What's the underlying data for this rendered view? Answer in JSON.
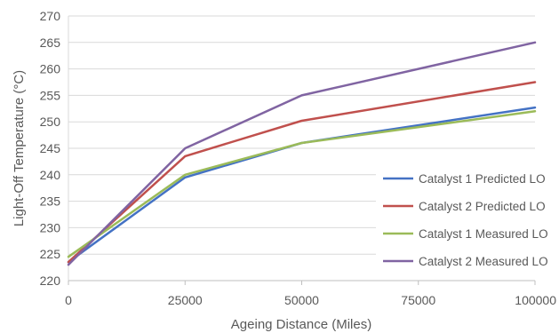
{
  "chart_data": {
    "type": "line",
    "title": "",
    "xlabel": "Ageing Distance (Miles)",
    "ylabel": "Light-Off Temperature (°C)",
    "x": [
      0,
      25000,
      50000,
      100000
    ],
    "xticks": [
      0,
      25000,
      50000,
      75000,
      100000
    ],
    "xtick_labels": [
      "0",
      "25000",
      "50000",
      "75000",
      "100000"
    ],
    "xlim": [
      0,
      100000
    ],
    "yticks": [
      220,
      225,
      230,
      235,
      240,
      245,
      250,
      255,
      260,
      265,
      270
    ],
    "ytick_labels": [
      "220",
      "225",
      "230",
      "235",
      "240",
      "245",
      "250",
      "255",
      "260",
      "265",
      "270"
    ],
    "ylim": [
      220,
      270
    ],
    "grid": true,
    "legend_position": "right",
    "series": [
      {
        "name": "Catalyst 1 Predicted LO",
        "color": "#4472C4",
        "values": [
          223.5,
          239.5,
          246.0,
          252.7
        ]
      },
      {
        "name": "Catalyst 2 Predicted LO",
        "color": "#C0504D",
        "values": [
          223.5,
          243.5,
          250.2,
          257.5
        ]
      },
      {
        "name": "Catalyst 1 Measured LO",
        "color": "#9BBB59",
        "values": [
          224.5,
          240.0,
          246.0,
          252.0
        ]
      },
      {
        "name": "Catalyst 2 Measured LO",
        "color": "#8064A2",
        "values": [
          223.0,
          245.0,
          255.0,
          265.0
        ]
      }
    ]
  }
}
